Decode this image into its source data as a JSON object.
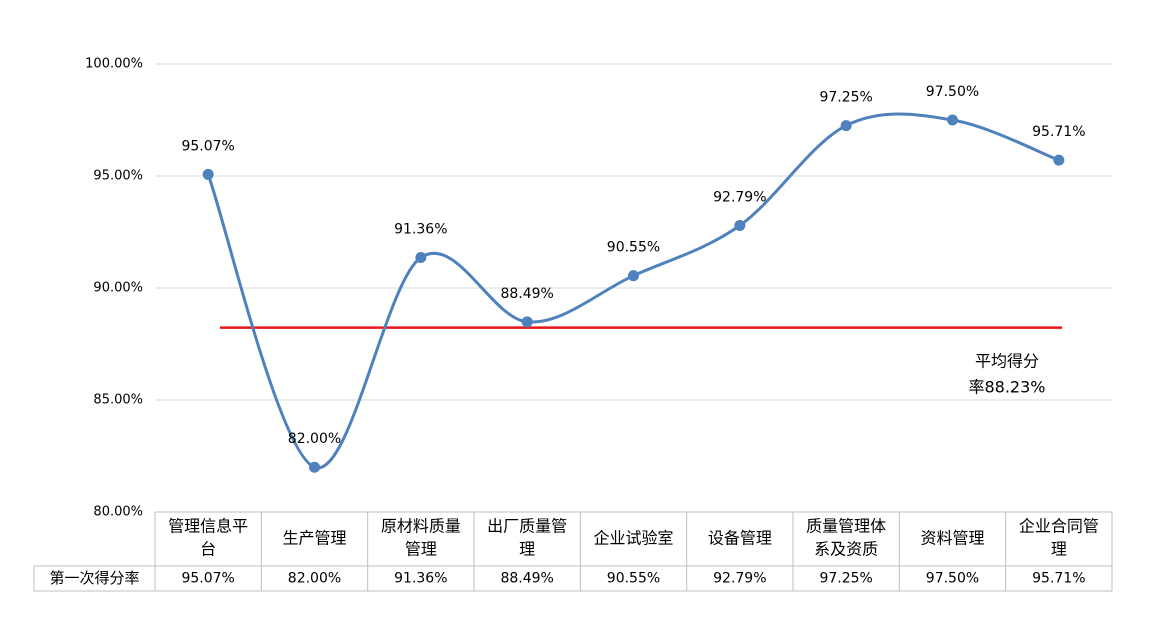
{
  "chart_data": {
    "type": "line",
    "categories": [
      "管理信息平台",
      "生产管理",
      "原材料质量管理",
      "出厂质量管理",
      "企业试验室",
      "设备管理",
      "质量管理体系及资质",
      "资料管理",
      "企业合同管理"
    ],
    "category_label_lines": [
      [
        "管理信息平",
        "台"
      ],
      [
        "生产管理"
      ],
      [
        "原材料质量",
        "管理"
      ],
      [
        "出厂质量管",
        "理"
      ],
      [
        "企业试验室"
      ],
      [
        "设备管理"
      ],
      [
        "质量管理体",
        "系及资质"
      ],
      [
        "资料管理"
      ],
      [
        "企业合同管",
        "理"
      ]
    ],
    "series": [
      {
        "name": "第一次得分率",
        "values": [
          95.07,
          82.0,
          91.36,
          88.49,
          90.55,
          92.79,
          97.25,
          97.5,
          95.71
        ],
        "labels": [
          "95.07%",
          "82.00%",
          "91.36%",
          "88.49%",
          "90.55%",
          "92.79%",
          "97.25%",
          "97.50%",
          "95.71%"
        ],
        "color": "#4F81BD"
      }
    ],
    "average": {
      "value": 88.23,
      "label_lines": [
        "平均得分",
        "率88.23%"
      ],
      "color": "#E8161B"
    },
    "ylim": [
      80,
      100
    ],
    "yticks": [
      80,
      85,
      90,
      95,
      100
    ],
    "ytick_labels": [
      "80.00%",
      "85.00%",
      "90.00%",
      "95.00%",
      "100.00%"
    ],
    "grid": true,
    "data_table": {
      "row_header": "第一次得分率",
      "cells": [
        "95.07%",
        "82.00%",
        "91.36%",
        "88.49%",
        "90.55%",
        "92.79%",
        "97.25%",
        "97.50%",
        "95.71%"
      ]
    },
    "colors": {
      "grid": "#D9D9D9",
      "table_border": "#BFBFBF",
      "text": "#000000"
    }
  }
}
